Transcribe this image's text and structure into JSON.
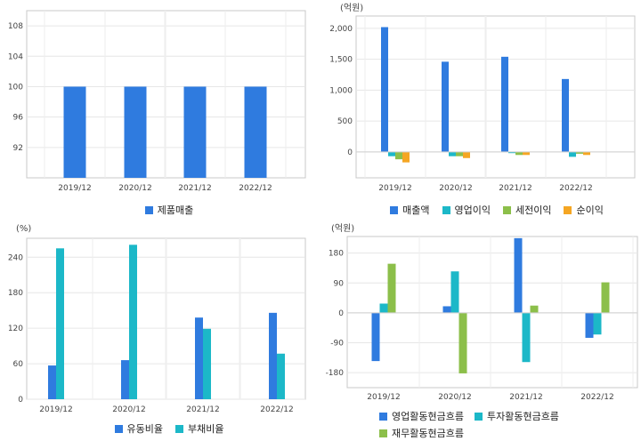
{
  "chart_data": [
    {
      "type": "bar",
      "unit_label": "",
      "categories": [
        "2019/12",
        "2020/12",
        "2021/12",
        "2022/12"
      ],
      "yticks": [
        92,
        96,
        100,
        104,
        108
      ],
      "ylim": [
        88,
        110
      ],
      "series": [
        {
          "name": "제품매출",
          "color": "#2f7bdf",
          "values": [
            100,
            100,
            100,
            100
          ]
        }
      ],
      "grid": true,
      "legend_position": "bottom"
    },
    {
      "type": "bar",
      "unit_label": "(억원)",
      "categories": [
        "2019/12",
        "2020/12",
        "2021/12",
        "2022/12"
      ],
      "yticks": [
        0,
        500,
        1000,
        1500,
        2000
      ],
      "ytick_labels": [
        "0",
        "500",
        "1,000",
        "1,500",
        "2,000"
      ],
      "ylim": [
        -420,
        2200
      ],
      "series": [
        {
          "name": "매출액",
          "color": "#2f7bdf",
          "values": [
            2020,
            1460,
            1540,
            1180
          ]
        },
        {
          "name": "영업이익",
          "color": "#1cb8c8",
          "values": [
            -70,
            -70,
            -20,
            -80
          ]
        },
        {
          "name": "세전이익",
          "color": "#8cbf4a",
          "values": [
            -120,
            -70,
            -50,
            -30
          ]
        },
        {
          "name": "순이익",
          "color": "#f5a623",
          "values": [
            -170,
            -100,
            -50,
            -50
          ]
        }
      ],
      "grid": true,
      "legend_position": "bottom"
    },
    {
      "type": "bar",
      "unit_label": "(%)",
      "categories": [
        "2019/12",
        "2020/12",
        "2021/12",
        "2022/12"
      ],
      "yticks": [
        0,
        60,
        120,
        180,
        240
      ],
      "ylim": [
        0,
        272
      ],
      "series": [
        {
          "name": "유동비율",
          "color": "#2f7bdf",
          "values": [
            57,
            66,
            138,
            146
          ]
        },
        {
          "name": "부채비율",
          "color": "#1cb8c8",
          "values": [
            255,
            261,
            119,
            77
          ]
        }
      ],
      "grid": true,
      "legend_position": "bottom"
    },
    {
      "type": "bar",
      "unit_label": "(억원)",
      "categories": [
        "2019/12",
        "2020/12",
        "2021/12",
        "2022/12"
      ],
      "yticks": [
        -180,
        -90,
        0,
        90,
        180
      ],
      "ylim": [
        -225,
        230
      ],
      "series": [
        {
          "name": "영업활동현금흐름",
          "color": "#2f7bdf",
          "values": [
            -145,
            20,
            225,
            -75
          ]
        },
        {
          "name": "투자활동현금흐름",
          "color": "#1cb8c8",
          "values": [
            28,
            125,
            -148,
            -65
          ]
        },
        {
          "name": "재무활동현금흐름",
          "color": "#8cbf4a",
          "values": [
            148,
            -182,
            22,
            92
          ]
        }
      ],
      "grid": true,
      "legend_position": "bottom"
    }
  ]
}
